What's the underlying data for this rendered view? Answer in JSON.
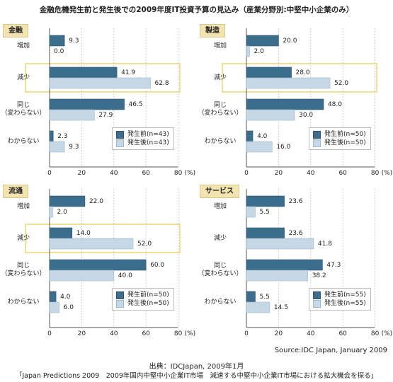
{
  "title": "金融危機発生前と発生後での2009年度IT投資予算の見込み（産業分野別:中堅中小企業のみ）",
  "colors": {
    "before": "#3d6d8c",
    "after": "#c6d7e6",
    "highlight": "#f0d877",
    "tag_bg": "#f2e3b0"
  },
  "axis": {
    "ticks": [
      "0",
      "20",
      "40",
      "60",
      "80"
    ],
    "unit": "(%)",
    "xlim": [
      0,
      80
    ]
  },
  "chart_data": [
    {
      "type": "bar",
      "panel": "金融",
      "categories": [
        "増加",
        "減少",
        "同じ\n（変わらない）",
        "わからない"
      ],
      "highlight_category": 1,
      "series": [
        {
          "name": "発生前(n=43)",
          "values": [
            9.3,
            41.9,
            46.5,
            2.3
          ]
        },
        {
          "name": "発生後(n=43)",
          "values": [
            0.0,
            62.8,
            27.9,
            9.3
          ]
        }
      ],
      "value_labels": [
        [
          "9.3",
          "41.9",
          "46.5",
          "2.3"
        ],
        [
          "0.0",
          "62.8",
          "27.9",
          "9.3"
        ]
      ],
      "xlim": [
        0,
        80
      ]
    },
    {
      "type": "bar",
      "panel": "製造",
      "categories": [
        "増加",
        "減少",
        "同じ\n（変わらない）",
        "わからない"
      ],
      "highlight_category": 1,
      "series": [
        {
          "name": "発生前(n=50)",
          "values": [
            20.0,
            28.0,
            48.0,
            4.0
          ]
        },
        {
          "name": "発生後(n=50)",
          "values": [
            2.0,
            52.0,
            30.0,
            16.0
          ]
        }
      ],
      "value_labels": [
        [
          "20.0",
          "28.0",
          "48.0",
          "4.0"
        ],
        [
          "2.0",
          "52.0",
          "30.0",
          "16.0"
        ]
      ],
      "xlim": [
        0,
        80
      ]
    },
    {
      "type": "bar",
      "panel": "流通",
      "categories": [
        "増加",
        "減少",
        "同じ\n（変わらない）",
        "わからない"
      ],
      "highlight_category": 1,
      "series": [
        {
          "name": "発生前(n=50)",
          "values": [
            22.0,
            14.0,
            60.0,
            4.0
          ]
        },
        {
          "name": "発生後(n=50)",
          "values": [
            2.0,
            52.0,
            40.0,
            6.0
          ]
        }
      ],
      "value_labels": [
        [
          "22.0",
          "14.0",
          "60.0",
          "4.0"
        ],
        [
          "2.0",
          "52.0",
          "40.0",
          "6.0"
        ]
      ],
      "xlim": [
        0,
        80
      ]
    },
    {
      "type": "bar",
      "panel": "サービス",
      "categories": [
        "増加",
        "減少",
        "同じ\n（変わらない）",
        "わからない"
      ],
      "highlight_category": null,
      "series": [
        {
          "name": "発生前(n=55)",
          "values": [
            23.6,
            23.6,
            47.3,
            5.5
          ]
        },
        {
          "name": "発生後(n=55)",
          "values": [
            5.5,
            41.8,
            38.2,
            14.5
          ]
        }
      ],
      "value_labels": [
        [
          "23.6",
          "23.6",
          "47.3",
          "5.5"
        ],
        [
          "5.5",
          "41.8",
          "38.2",
          "14.5"
        ]
      ],
      "xlim": [
        0,
        80
      ]
    }
  ],
  "source": "Source:IDC Japan, January 2009",
  "footer": {
    "line1": "出典：IDCJapan, 2009年1月",
    "line2": "「Japan Predictions 2009　2009年国内中堅中小企業IT市場　減速する中堅中小企業IT市場における拡大機会を探る」"
  }
}
